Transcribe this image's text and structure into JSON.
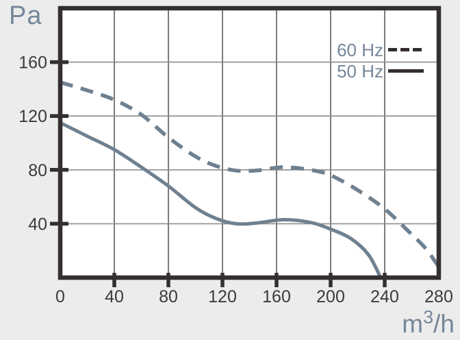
{
  "chart_data": {
    "type": "line",
    "title": "",
    "ylabel": "Pa",
    "xlabel": "m³/h",
    "xlabel_parts": {
      "base": "m",
      "sup": "3",
      "rest": "/h"
    },
    "xlim": [
      0,
      280
    ],
    "ylim": [
      0,
      200
    ],
    "x_ticks": [
      0,
      40,
      80,
      120,
      160,
      200,
      240,
      280
    ],
    "y_ticks": [
      40,
      80,
      120,
      160
    ],
    "grid": true,
    "legend_position": "top-right",
    "series": [
      {
        "name": "60 Hz",
        "style": "dashed",
        "points": [
          [
            0,
            145
          ],
          [
            20,
            139
          ],
          [
            40,
            132
          ],
          [
            60,
            121
          ],
          [
            80,
            104
          ],
          [
            100,
            90
          ],
          [
            115,
            83
          ],
          [
            130,
            79.5
          ],
          [
            145,
            79.5
          ],
          [
            165,
            82
          ],
          [
            185,
            80
          ],
          [
            200,
            76
          ],
          [
            220,
            65
          ],
          [
            240,
            51
          ],
          [
            258,
            34
          ],
          [
            270,
            22
          ],
          [
            280,
            8
          ]
        ]
      },
      {
        "name": "50 Hz",
        "style": "solid",
        "points": [
          [
            0,
            115
          ],
          [
            20,
            105
          ],
          [
            40,
            95
          ],
          [
            60,
            82
          ],
          [
            80,
            68
          ],
          [
            100,
            52
          ],
          [
            115,
            44
          ],
          [
            130,
            40
          ],
          [
            145,
            40.5
          ],
          [
            165,
            43
          ],
          [
            185,
            41
          ],
          [
            200,
            36
          ],
          [
            215,
            29
          ],
          [
            228,
            17
          ],
          [
            237,
            0
          ]
        ]
      }
    ],
    "colors": {
      "background": "#ECECEC",
      "plot_background": "#FFFFFF",
      "frame": "#342F31",
      "curve": "#6F8190",
      "vertical_grid": "#454545",
      "horizontal_grid": "#8E8E8E",
      "tick_label": "#3E393B",
      "unit_label": "#76879A",
      "legend_sample": "#332D2F"
    }
  }
}
